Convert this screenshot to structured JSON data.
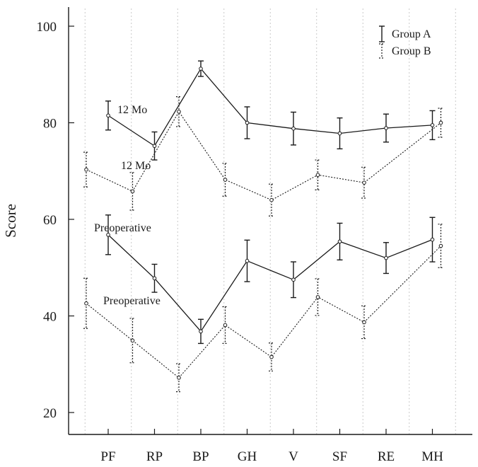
{
  "chart_data": {
    "type": "line",
    "ylabel": "Score",
    "xlabel": "",
    "ylim": [
      17,
      104
    ],
    "yticks": [
      20,
      40,
      60,
      80,
      100
    ],
    "grid": "vertical dotted",
    "categories": [
      "PF",
      "RP",
      "BP",
      "GH",
      "V",
      "SF",
      "RE",
      "MH"
    ],
    "legend": {
      "position": "top-right",
      "entries": [
        {
          "name": "Group A",
          "style": "solid"
        },
        {
          "name": "Group B",
          "style": "dotted"
        }
      ]
    },
    "annotations": [
      {
        "text": "12 Mo",
        "near": "Group A 12 Mo at PF"
      },
      {
        "text": "12 Mo",
        "near": "Group B 12 Mo at PF"
      },
      {
        "text": "Preoperative",
        "near": "Group A Preoperative at PF"
      },
      {
        "text": "Preoperative",
        "near": "Group B Preoperative at PF"
      }
    ],
    "series": [
      {
        "name": "Group A 12 Mo",
        "group": "Group A",
        "timepoint": "12 Mo",
        "style": "solid",
        "offset": 0,
        "values": [
          81.5,
          75.2,
          91.2,
          80.0,
          78.8,
          77.8,
          78.9,
          79.5
        ],
        "errors": [
          3.0,
          2.9,
          1.6,
          3.3,
          3.4,
          3.2,
          2.9,
          3.0
        ]
      },
      {
        "name": "Group B 12 Mo",
        "group": "Group B",
        "timepoint": "12 Mo",
        "style": "dotted",
        "offset": 1,
        "values": [
          70.3,
          65.8,
          82.3,
          68.2,
          64.0,
          69.2,
          67.6,
          80.0
        ],
        "errors": [
          3.6,
          3.9,
          3.1,
          3.4,
          3.3,
          3.1,
          3.2,
          3.0
        ]
      },
      {
        "name": "Group A Preoperative",
        "group": "Group A",
        "timepoint": "Preoperative",
        "style": "solid",
        "offset": 0,
        "values": [
          56.8,
          47.8,
          36.8,
          51.4,
          47.5,
          55.4,
          52.0,
          55.8
        ],
        "errors": [
          4.1,
          2.9,
          2.5,
          4.3,
          3.7,
          3.8,
          3.2,
          4.6
        ]
      },
      {
        "name": "Group B Preoperative",
        "group": "Group B",
        "timepoint": "Preoperative",
        "style": "dotted",
        "offset": 1,
        "values": [
          42.6,
          34.9,
          27.2,
          38.1,
          31.5,
          43.9,
          38.7,
          54.5
        ],
        "errors": [
          5.2,
          4.6,
          2.9,
          3.8,
          2.9,
          3.8,
          3.4,
          4.5
        ]
      }
    ]
  }
}
